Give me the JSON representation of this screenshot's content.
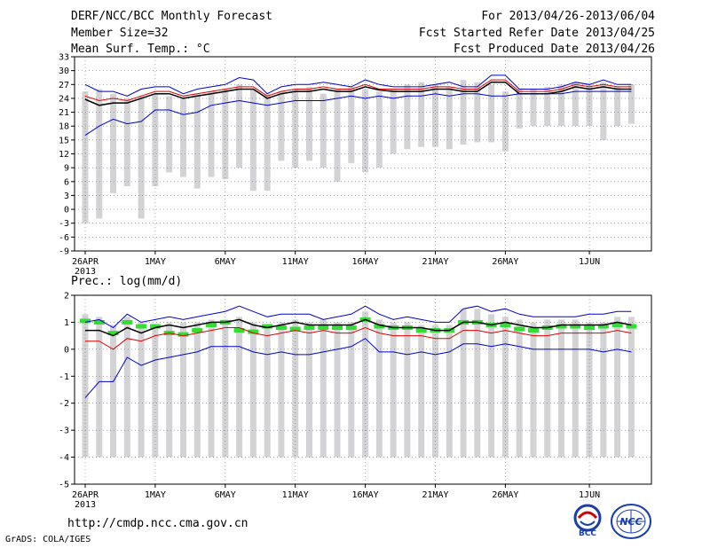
{
  "header": {
    "title": "DERF/NCC/BCC Monthly Forecast",
    "member": "Member Size=32",
    "variable": "Mean Surf. Temp.: °C",
    "period": "For 2013/04/26-2013/06/04",
    "started": "Fcst Started Refer Date 2013/04/25",
    "produced": "Fcst Produced Date 2013/04/26"
  },
  "footer": {
    "url": "http://cmdp.ncc.cma.gov.cn",
    "grads": "GrADS: COLA/IGES",
    "bcc_logo_text": "BCC",
    "ncc_logo_text": "NCC"
  },
  "colors": {
    "bar": "#d3d3d6",
    "blue": "#0000d0",
    "red": "#e00000",
    "black": "#000000",
    "green": "#33dd33",
    "grid": "#777777"
  },
  "chart_data": [
    {
      "type": "bar+line",
      "title": "Mean Surf. Temp.: °C",
      "x_tick_labels": [
        "26APR",
        "1MAY",
        "6MAY",
        "11MAY",
        "16MAY",
        "21MAY",
        "26MAY",
        "1JUN"
      ],
      "x_tick_index": [
        0,
        5,
        10,
        15,
        20,
        25,
        30,
        36
      ],
      "year_label": "2013",
      "ylim": [
        -9,
        33
      ],
      "yticks": [
        -9,
        -6,
        -3,
        0,
        3,
        6,
        9,
        12,
        15,
        18,
        21,
        24,
        27,
        30,
        33
      ],
      "bar_top": [
        25.5,
        26,
        25,
        24,
        24.5,
        25,
        24.5,
        24,
        25,
        25.5,
        26,
        27,
        26,
        25,
        25.5,
        26,
        26.5,
        25,
        26,
        26.5,
        26,
        25.5,
        26,
        27,
        27.5,
        27,
        26.5,
        28,
        27.5,
        27,
        25.5,
        26,
        26,
        26.5,
        27,
        27.5,
        27,
        27.5,
        26.5,
        27
      ],
      "bar_bottom": [
        -3,
        -2,
        3.5,
        5,
        -2,
        5,
        8,
        7,
        4.5,
        7,
        6.5,
        9,
        4,
        4,
        10.5,
        9,
        10.5,
        9,
        6,
        10,
        8,
        9,
        12,
        13,
        13.5,
        13.5,
        13,
        14,
        14.5,
        14.5,
        12.5,
        17.5,
        18,
        18,
        18,
        18,
        18,
        15,
        18,
        18.5
      ],
      "series": [
        {
          "name": "max",
          "color": "blue",
          "values": [
            27,
            25.5,
            25.5,
            24.5,
            26,
            26.5,
            26.5,
            25,
            26,
            26.5,
            27,
            28.5,
            28,
            25,
            26.5,
            27,
            27,
            27.5,
            27,
            26.5,
            28,
            27,
            26.5,
            26.5,
            26.5,
            27,
            27.5,
            26.5,
            26.5,
            29,
            29,
            26,
            26,
            26,
            26.5,
            27.5,
            27,
            28,
            27,
            27
          ]
        },
        {
          "name": "upper",
          "color": "red",
          "values": [
            24.5,
            23.5,
            24,
            23.5,
            24.5,
            25.5,
            25.5,
            24.5,
            25,
            25.5,
            26,
            26.5,
            26.5,
            24.5,
            25.5,
            26,
            26,
            26.5,
            26,
            26,
            27,
            26,
            26,
            26,
            26,
            26.5,
            26.5,
            26,
            26,
            28,
            28,
            25.5,
            25.5,
            25.5,
            26,
            27,
            26.5,
            27,
            26.5,
            26.5
          ]
        },
        {
          "name": "mean",
          "color": "black",
          "values": [
            23.8,
            22.5,
            23,
            23,
            24,
            25,
            25,
            24,
            24.5,
            25,
            25.5,
            26,
            26,
            24,
            25,
            25.5,
            25.5,
            26,
            25.5,
            25.5,
            26.5,
            25.8,
            25.5,
            25.5,
            25.5,
            26,
            26,
            25.5,
            25.5,
            27.5,
            27.5,
            25,
            25,
            25,
            25.5,
            26.5,
            26,
            26.5,
            26,
            26
          ]
        },
        {
          "name": "min",
          "color": "blue",
          "values": [
            16,
            18,
            19.5,
            18.5,
            19,
            21.5,
            21.5,
            20.5,
            21,
            22.5,
            23,
            23.5,
            23,
            22.5,
            23,
            23.5,
            23.5,
            23.5,
            24,
            24.5,
            24,
            24.5,
            24,
            24.5,
            24.5,
            25,
            24.5,
            25,
            25,
            24.5,
            24.5,
            25,
            25,
            25,
            25,
            25.5,
            25.5,
            25.5,
            25.5,
            25.5
          ]
        }
      ]
    },
    {
      "type": "bar+line",
      "title": "Prec.: log(mm/d)",
      "x_tick_labels": [
        "26APR",
        "1MAY",
        "6MAY",
        "11MAY",
        "16MAY",
        "21MAY",
        "26MAY",
        "1JUN"
      ],
      "x_tick_index": [
        0,
        5,
        10,
        15,
        20,
        25,
        30,
        36
      ],
      "year_label": "2013",
      "ylim": [
        -5,
        2
      ],
      "yticks": [
        -5,
        -4,
        -3,
        -2,
        -1,
        0,
        1,
        2
      ],
      "bar_top": [
        1.3,
        1.2,
        0.9,
        1.2,
        1,
        0.9,
        1,
        1,
        1,
        1.1,
        1.1,
        1.2,
        1,
        0.9,
        1,
        1.1,
        1,
        1.1,
        1,
        1,
        1.4,
        1.1,
        1,
        1,
        0.9,
        0.9,
        0.9,
        1.5,
        1.5,
        1.3,
        1.2,
        1.1,
        1,
        1.1,
        1.1,
        1.1,
        1,
        1,
        1.2,
        1.2
      ],
      "bar_bottom": [
        -4,
        -4,
        -4,
        -4,
        -4,
        -4,
        -4,
        -4,
        -4,
        -4,
        -4,
        -4,
        -4,
        -4,
        -4,
        -4,
        -4,
        -4,
        -4,
        -4,
        -4,
        -4,
        -4,
        -4,
        -4,
        -4,
        -4,
        -4,
        -4,
        -4,
        -4,
        -4,
        -4,
        -4,
        -4,
        -4,
        -4,
        -4,
        -4,
        -4
      ],
      "observed_marks": [
        1.05,
        1.0,
        0.6,
        1.0,
        0.85,
        0.85,
        0.6,
        0.55,
        0.7,
        0.9,
        1.0,
        0.7,
        0.65,
        0.85,
        0.8,
        0.75,
        0.8,
        0.8,
        0.8,
        0.8,
        1.1,
        0.85,
        0.8,
        0.8,
        0.7,
        0.7,
        0.7,
        1.0,
        1.0,
        0.9,
        0.9,
        0.75,
        0.7,
        0.8,
        0.85,
        0.85,
        0.8,
        0.85,
        0.9,
        0.85
      ],
      "series": [
        {
          "name": "max",
          "color": "blue",
          "values": [
            1.0,
            1.1,
            0.8,
            1.3,
            1.0,
            1.1,
            1.2,
            1.1,
            1.2,
            1.3,
            1.4,
            1.6,
            1.4,
            1.2,
            1.3,
            1.3,
            1.3,
            1.1,
            1.2,
            1.3,
            1.6,
            1.3,
            1.1,
            1.2,
            1.1,
            1.0,
            1.0,
            1.5,
            1.6,
            1.4,
            1.5,
            1.3,
            1.2,
            1.2,
            1.2,
            1.2,
            1.3,
            1.3,
            1.4,
            1.4
          ]
        },
        {
          "name": "upper",
          "color": "black",
          "values": [
            0.7,
            0.7,
            0.5,
            0.8,
            0.6,
            0.8,
            0.9,
            0.8,
            0.9,
            1.0,
            1.0,
            1.1,
            0.9,
            0.8,
            0.9,
            1.0,
            0.9,
            0.9,
            0.9,
            0.9,
            1.1,
            0.9,
            0.8,
            0.8,
            0.8,
            0.7,
            0.7,
            1.0,
            1.0,
            0.9,
            1.0,
            0.9,
            0.8,
            0.8,
            0.9,
            0.9,
            0.9,
            0.9,
            1.0,
            0.9
          ]
        },
        {
          "name": "lower",
          "color": "red",
          "values": [
            0.3,
            0.3,
            0.0,
            0.4,
            0.3,
            0.5,
            0.6,
            0.5,
            0.6,
            0.7,
            0.8,
            0.8,
            0.6,
            0.5,
            0.6,
            0.7,
            0.6,
            0.7,
            0.6,
            0.6,
            0.8,
            0.6,
            0.5,
            0.5,
            0.5,
            0.4,
            0.4,
            0.7,
            0.7,
            0.6,
            0.7,
            0.6,
            0.5,
            0.5,
            0.6,
            0.6,
            0.6,
            0.6,
            0.7,
            0.6
          ]
        },
        {
          "name": "min",
          "color": "blue",
          "values": [
            -1.8,
            -1.2,
            -1.2,
            -0.3,
            -0.6,
            -0.4,
            -0.3,
            -0.2,
            -0.1,
            0.1,
            0.1,
            0.1,
            -0.1,
            -0.2,
            -0.1,
            -0.2,
            -0.2,
            -0.1,
            0.0,
            0.1,
            0.4,
            -0.1,
            -0.1,
            -0.2,
            -0.1,
            -0.2,
            -0.1,
            0.2,
            0.2,
            0.1,
            0.2,
            0.1,
            0.0,
            0.0,
            0.0,
            0.0,
            0.0,
            -0.1,
            0.0,
            -0.1
          ]
        }
      ]
    }
  ]
}
